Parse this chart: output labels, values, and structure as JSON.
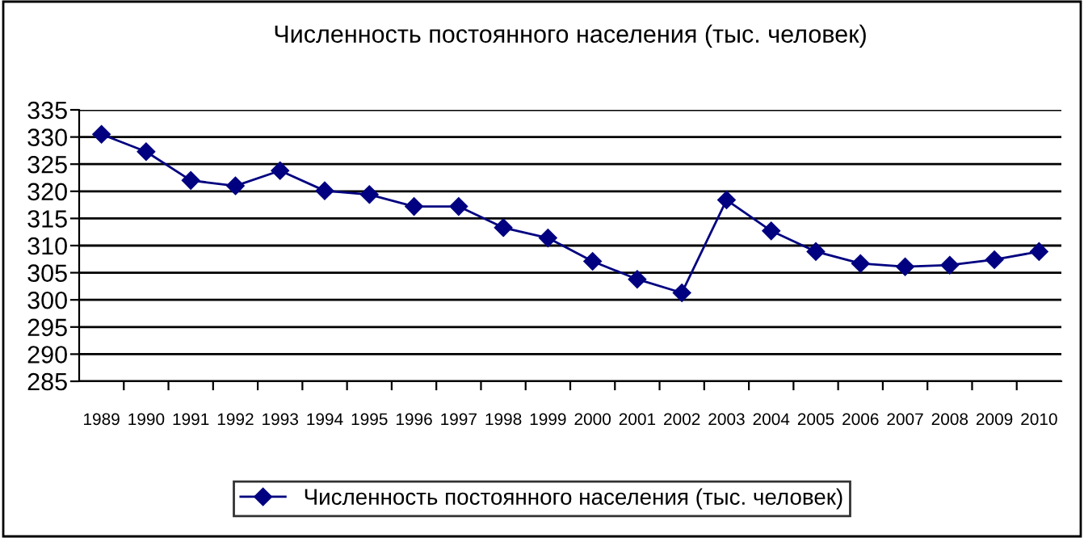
{
  "chart_data": {
    "type": "line",
    "title": "Численность постоянного населения (тыс. человек)",
    "categories": [
      "1989",
      "1990",
      "1991",
      "1992",
      "1993",
      "1994",
      "1995",
      "1996",
      "1997",
      "1998",
      "1999",
      "2000",
      "2001",
      "2002",
      "2003",
      "2004",
      "2005",
      "2006",
      "2007",
      "2008",
      "2009",
      "2010"
    ],
    "series": [
      {
        "name": "Численность постоянного населения (тыс. человек)",
        "color": "#000080",
        "values": [
          330.5,
          327.3,
          322.0,
          321.0,
          323.8,
          320.1,
          319.4,
          317.2,
          317.2,
          313.3,
          311.4,
          307.1,
          303.8,
          301.3,
          318.4,
          312.7,
          308.9,
          306.7,
          306.1,
          306.4,
          307.4,
          308.9
        ]
      }
    ],
    "ylim": [
      285,
      335
    ],
    "yticks": [
      285,
      290,
      295,
      300,
      305,
      310,
      315,
      320,
      325,
      330,
      335
    ],
    "grid": "y",
    "legend": "bottom",
    "marker": "diamond",
    "line_style": "solid"
  }
}
